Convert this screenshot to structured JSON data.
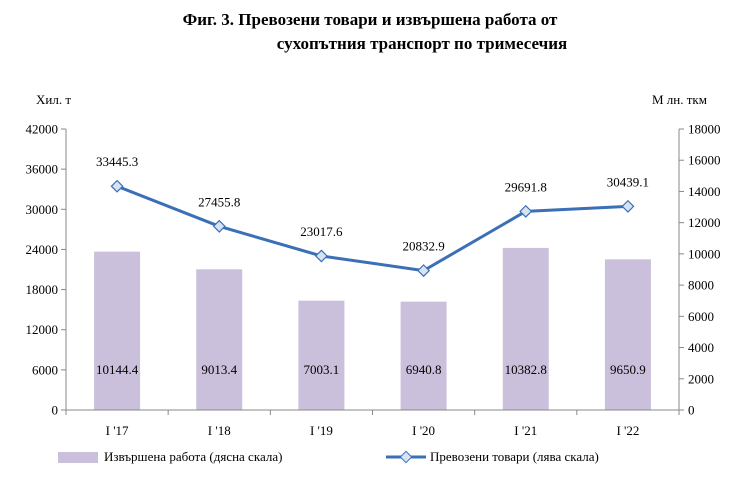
{
  "title": {
    "line1": "Фиг. 3. Превозени товари и извършена работа от",
    "line2": "сухопътния транспорт по тримесечия"
  },
  "colors": {
    "bar": "#CBC0DB",
    "line": "#3B6FB6",
    "marker_fill": "#D6E4F2"
  },
  "chart_data": {
    "type": "bar+line",
    "title": "Фиг. 3. Превозени товари и извършена работа от сухопътния транспорт по тримесечия",
    "categories": [
      "I '17",
      "I '18",
      "I '19",
      "I '20",
      "I '21",
      "I '22"
    ],
    "left_axis": {
      "label": "Хил. т",
      "ylim": [
        0,
        42000
      ],
      "ticks": [
        0,
        6000,
        12000,
        18000,
        24000,
        30000,
        36000,
        42000
      ]
    },
    "right_axis": {
      "label": "М лн. ткм",
      "ylim": [
        0,
        18000
      ],
      "ticks": [
        0,
        2000,
        4000,
        6000,
        8000,
        10000,
        12000,
        14000,
        16000,
        18000
      ]
    },
    "series": [
      {
        "name": "Извършена работа (дясна скала)",
        "type": "bar",
        "axis": "right",
        "values": [
          10144.4,
          9013.4,
          7003.1,
          6940.8,
          10382.8,
          9650.9
        ],
        "labels": [
          "10144.4",
          "9013.4",
          "7003.1",
          "6940.8",
          "10382.8",
          "9650.9"
        ]
      },
      {
        "name": "Превозени товари (лява скала)",
        "type": "line",
        "axis": "left",
        "values": [
          33445.3,
          27455.8,
          23017.6,
          20832.9,
          29691.8,
          30439.1
        ],
        "labels": [
          "33445.3",
          "27455.8",
          "23017.6",
          "20832.9",
          "29691.8",
          "30439.1"
        ]
      }
    ],
    "legend": [
      "Извършена работа (дясна скала)",
      "Превозени товари (лява скала)"
    ],
    "legend_position": "bottom",
    "grid": false
  }
}
